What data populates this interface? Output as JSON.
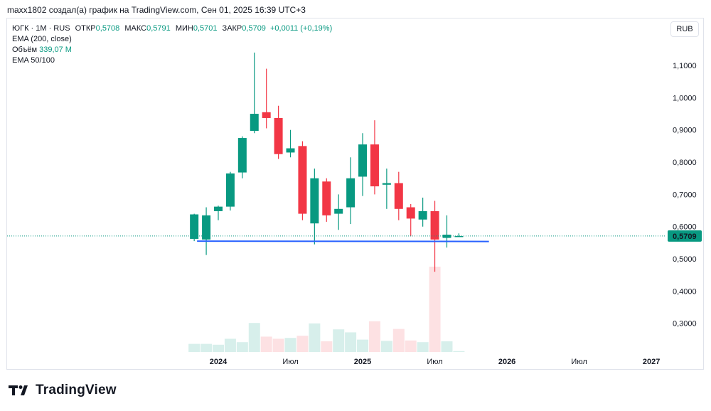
{
  "caption": "maxx1802 создал(а) график на TradingView.com, Сен 01, 2025 16:39 UTC+3",
  "legend": {
    "symbol": "ЮГК · 1М · RUS",
    "open_label": "ОТКР",
    "open_value": "0,5708",
    "high_label": "МАКС",
    "high_value": "0,5791",
    "low_label": "МИН",
    "low_value": "0,5701",
    "close_label": "ЗАКР",
    "close_value": "0,5709",
    "change": "+0,0011 (+0,19%)",
    "ema200": "EMA (200, close)",
    "volume_label": "Объём",
    "volume_value": "339,07 M",
    "ema50_100": "EMA 50/100"
  },
  "currency_button": "RUB",
  "brand": "TradingView",
  "colors": {
    "up": "#089981",
    "down": "#f23645",
    "support": "#2962ff",
    "price_tag": "#089981"
  },
  "chart_data": {
    "type": "candlestick",
    "timeframe": "1M",
    "currency": "RUB",
    "y_ticks": [
      "1,1000",
      "1,0000",
      "0,9000",
      "0,8000",
      "0,7000",
      "0,6000",
      "0,5000",
      "0,4000",
      "0,3000"
    ],
    "y_tick_values": [
      1.1,
      1.0,
      0.9,
      0.8,
      0.7,
      0.6,
      0.5,
      0.4,
      0.3
    ],
    "ylim": [
      0.22,
      1.2
    ],
    "x_ticks": [
      {
        "label": "2024",
        "bold": true
      },
      {
        "label": "Июл",
        "bold": false
      },
      {
        "label": "2025",
        "bold": true
      },
      {
        "label": "Июл",
        "bold": false
      },
      {
        "label": "2026",
        "bold": true
      },
      {
        "label": "Июл",
        "bold": false
      },
      {
        "label": "2027",
        "bold": true
      }
    ],
    "x_tick_months": [
      0,
      6,
      12,
      18,
      24,
      30,
      36
    ],
    "last_price": "0,5709",
    "last_price_value": 0.5709,
    "support_level": 0.555,
    "support_from_month": -2,
    "support_to_month": 22.5,
    "candles": [
      {
        "m": -2,
        "o": 0.562,
        "h": 0.64,
        "l": 0.555,
        "c": 0.638,
        "v": 0.19
      },
      {
        "m": -1,
        "o": 0.56,
        "h": 0.66,
        "l": 0.512,
        "c": 0.635,
        "v": 0.19
      },
      {
        "m": 0,
        "o": 0.648,
        "h": 0.665,
        "l": 0.62,
        "c": 0.662,
        "v": 0.17
      },
      {
        "m": 1,
        "o": 0.662,
        "h": 0.77,
        "l": 0.65,
        "c": 0.765,
        "v": 0.31
      },
      {
        "m": 2,
        "o": 0.768,
        "h": 0.88,
        "l": 0.75,
        "c": 0.875,
        "v": 0.23
      },
      {
        "m": 3,
        "o": 0.897,
        "h": 1.14,
        "l": 0.89,
        "c": 0.95,
        "v": 0.68
      },
      {
        "m": 4,
        "o": 0.955,
        "h": 1.09,
        "l": 0.905,
        "c": 0.937,
        "v": 0.36
      },
      {
        "m": 5,
        "o": 0.937,
        "h": 0.975,
        "l": 0.81,
        "c": 0.825,
        "v": 0.31
      },
      {
        "m": 6,
        "o": 0.83,
        "h": 0.9,
        "l": 0.815,
        "c": 0.843,
        "v": 0.33
      },
      {
        "m": 7,
        "o": 0.85,
        "h": 0.865,
        "l": 0.62,
        "c": 0.64,
        "v": 0.38
      },
      {
        "m": 8,
        "o": 0.61,
        "h": 0.78,
        "l": 0.545,
        "c": 0.75,
        "v": 0.67
      },
      {
        "m": 9,
        "o": 0.74,
        "h": 0.75,
        "l": 0.615,
        "c": 0.635,
        "v": 0.25
      },
      {
        "m": 10,
        "o": 0.64,
        "h": 0.7,
        "l": 0.59,
        "c": 0.655,
        "v": 0.53
      },
      {
        "m": 11,
        "o": 0.66,
        "h": 0.815,
        "l": 0.608,
        "c": 0.75,
        "v": 0.46
      },
      {
        "m": 12,
        "o": 0.755,
        "h": 0.89,
        "l": 0.695,
        "c": 0.855,
        "v": 0.29
      },
      {
        "m": 13,
        "o": 0.855,
        "h": 0.93,
        "l": 0.7,
        "c": 0.725,
        "v": 0.72
      },
      {
        "m": 14,
        "o": 0.73,
        "h": 0.78,
        "l": 0.655,
        "c": 0.735,
        "v": 0.26
      },
      {
        "m": 15,
        "o": 0.735,
        "h": 0.77,
        "l": 0.62,
        "c": 0.655,
        "v": 0.54
      },
      {
        "m": 16,
        "o": 0.66,
        "h": 0.67,
        "l": 0.57,
        "c": 0.625,
        "v": 0.27
      },
      {
        "m": 17,
        "o": 0.622,
        "h": 0.69,
        "l": 0.6,
        "c": 0.648,
        "v": 0.23
      },
      {
        "m": 18,
        "o": 0.648,
        "h": 0.68,
        "l": 0.46,
        "c": 0.56,
        "v": 2.0
      },
      {
        "m": 19,
        "o": 0.565,
        "h": 0.635,
        "l": 0.535,
        "c": 0.575,
        "v": 0.25
      },
      {
        "m": 20,
        "o": 0.5708,
        "h": 0.5791,
        "l": 0.5701,
        "c": 0.5709,
        "v": 0.02
      }
    ]
  }
}
